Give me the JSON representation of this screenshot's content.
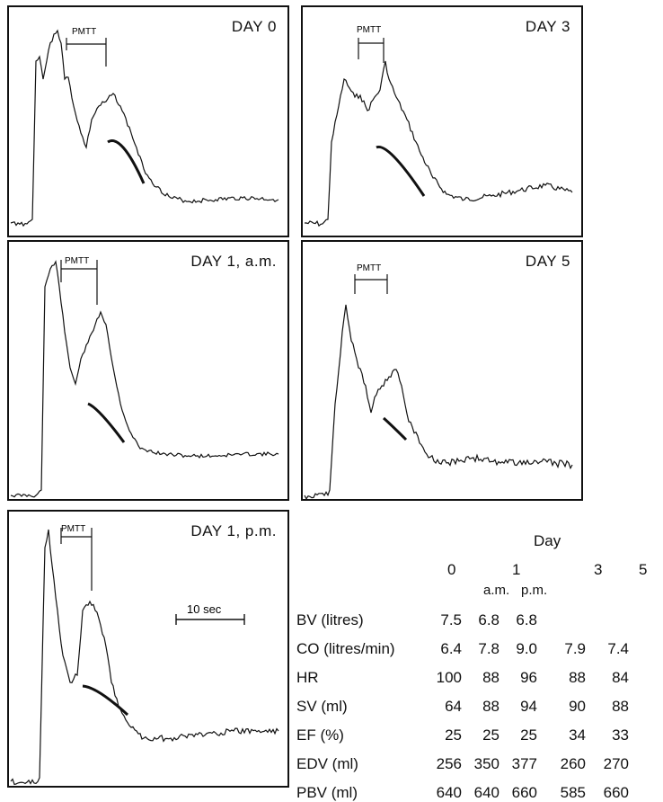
{
  "panels": [
    {
      "id": "day0",
      "title": "DAY 0",
      "pmtt_label": "PMTT"
    },
    {
      "id": "day3",
      "title": "DAY 3",
      "pmtt_label": "PMTT"
    },
    {
      "id": "day1am",
      "title": "DAY 1, a.m.",
      "pmtt_label": "PMTT"
    },
    {
      "id": "day5",
      "title": "DAY 5",
      "pmtt_label": "PMTT"
    },
    {
      "id": "day1pm",
      "title": "DAY 1, p.m.",
      "pmtt_label": "PMTT",
      "scale_label": "10 sec"
    }
  ],
  "table": {
    "group_header": "Day",
    "columns": [
      "0",
      "1",
      "3",
      "5"
    ],
    "subcolumns": [
      "a.m.",
      "p.m."
    ],
    "rows": [
      {
        "label": "BV (litres)",
        "values": [
          "7.5",
          "6.8",
          "6.8",
          "",
          ""
        ]
      },
      {
        "label": "CO (litres/min)",
        "values": [
          "6.4",
          "7.8",
          "9.0",
          "7.9",
          "7.4"
        ]
      },
      {
        "label": "HR",
        "values": [
          "100",
          "88",
          "96",
          "88",
          "84"
        ]
      },
      {
        "label": "SV (ml)",
        "values": [
          "64",
          "88",
          "94",
          "90",
          "88"
        ]
      },
      {
        "label": "EF (%)",
        "values": [
          "25",
          "25",
          "25",
          "34",
          "33"
        ]
      },
      {
        "label": "EDV (ml)",
        "values": [
          "256",
          "350",
          "377",
          "260",
          "270"
        ]
      },
      {
        "label": "PBV (ml)",
        "values": [
          "640",
          "640",
          "660",
          "585",
          "660"
        ]
      }
    ]
  }
}
